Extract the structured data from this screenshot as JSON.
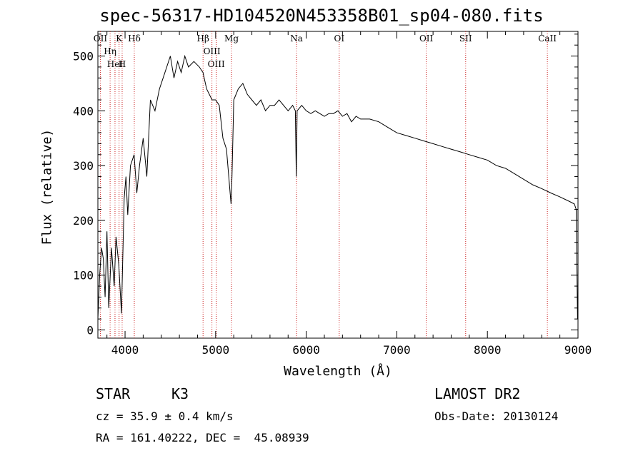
{
  "chart_data": {
    "type": "line",
    "title": "spec-56317-HD104520N453358B01_sp04-080.fits",
    "xlabel": "Wavelength (Å)",
    "ylabel": "Flux (relative)",
    "xlim": [
      3700,
      9000
    ],
    "ylim": [
      -15,
      545
    ],
    "xticks": [
      4000,
      5000,
      6000,
      7000,
      8000,
      9000
    ],
    "yticks": [
      0,
      100,
      200,
      300,
      400,
      500
    ],
    "grid": false,
    "series": [
      {
        "x": [
          3700,
          3720,
          3740,
          3760,
          3780,
          3800,
          3820,
          3850,
          3880,
          3900,
          3930,
          3960,
          3990,
          4010,
          4030,
          4060,
          4100,
          4130,
          4160,
          4200,
          4240,
          4280,
          4330,
          4380,
          4420,
          4460,
          4500,
          4540,
          4580,
          4620,
          4660,
          4700,
          4760,
          4820,
          4860,
          4900,
          4960,
          5000,
          5040,
          5080,
          5120,
          5170,
          5180,
          5200,
          5250,
          5300,
          5350,
          5400,
          5450,
          5500,
          5550,
          5600,
          5650,
          5700,
          5750,
          5800,
          5850,
          5880,
          5890,
          5900,
          5950,
          6000,
          6050,
          6100,
          6150,
          6200,
          6250,
          6300,
          6350,
          6400,
          6450,
          6500,
          6550,
          6600,
          6650,
          6700,
          6800,
          6900,
          7000,
          7100,
          7200,
          7300,
          7400,
          7500,
          7600,
          7700,
          7800,
          7900,
          8000,
          8100,
          8200,
          8300,
          8400,
          8500,
          8600,
          8700,
          8800,
          8900,
          8960,
          8980,
          8995
        ],
        "y": [
          20,
          100,
          150,
          130,
          60,
          180,
          40,
          150,
          80,
          170,
          120,
          30,
          240,
          280,
          210,
          300,
          320,
          250,
          300,
          350,
          280,
          420,
          400,
          440,
          460,
          480,
          500,
          460,
          490,
          470,
          500,
          480,
          490,
          480,
          470,
          440,
          420,
          420,
          410,
          350,
          330,
          230,
          280,
          420,
          440,
          450,
          430,
          420,
          410,
          420,
          400,
          410,
          410,
          420,
          410,
          400,
          410,
          400,
          280,
          400,
          410,
          400,
          395,
          400,
          395,
          390,
          395,
          395,
          400,
          390,
          395,
          380,
          390,
          385,
          385,
          385,
          380,
          370,
          360,
          355,
          350,
          345,
          340,
          335,
          330,
          325,
          320,
          315,
          310,
          300,
          295,
          285,
          275,
          265,
          258,
          250,
          243,
          235,
          230,
          220,
          20
        ]
      }
    ],
    "lines": [
      {
        "name": "OII",
        "x": 3727
      },
      {
        "name": "Hη",
        "x": 3835
      },
      {
        "name": "HeI",
        "x": 3889
      },
      {
        "name": "K",
        "x": 3934
      },
      {
        "name": "H",
        "x": 3968
      },
      {
        "name": "Hδ",
        "x": 4102
      },
      {
        "name": "Hβ",
        "x": 4861
      },
      {
        "name": "OIII",
        "x": 4959
      },
      {
        "name": "OIII",
        "x": 5007
      },
      {
        "name": "Mg",
        "x": 5175
      },
      {
        "name": "Na",
        "x": 5893
      },
      {
        "name": "OI",
        "x": 6364
      },
      {
        "name": "OII",
        "x": 7325
      },
      {
        "name": "SII",
        "x": 7760
      },
      {
        "name": "CaII",
        "x": 8662
      }
    ],
    "line_color": "#000000",
    "marker_color": "#cc2222"
  },
  "info": {
    "class": "STAR",
    "subclass": "K3",
    "survey": "LAMOST DR2",
    "cz": "cz = 35.9 ± 0.4 km/s",
    "obs_date": "Obs-Date: 20130124",
    "radec": "RA = 161.40222, DEC =  45.08939"
  }
}
